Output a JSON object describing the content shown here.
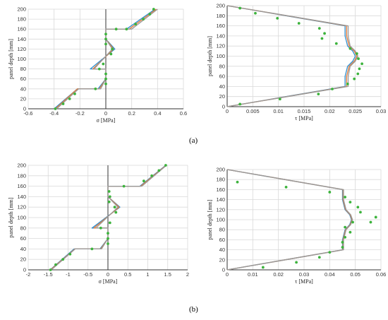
{
  "labels": {
    "a": "(a)",
    "b": "(b)"
  },
  "chart_data": [
    {
      "id": "a-sigma",
      "type": "line",
      "xlabel": "σ [MPa]",
      "ylabel": "panel depth [mm]",
      "xlim": [
        -0.6,
        0.6
      ],
      "ylim": [
        0,
        200
      ],
      "xticks": [
        -0.6,
        -0.4,
        -0.2,
        0,
        0.2,
        0.4,
        0.6
      ],
      "xticklabels": [
        "-0.6",
        "-0.4",
        "-0.2",
        "0",
        "0.2",
        "0.4",
        "0.6"
      ],
      "yticks": [
        0,
        20,
        40,
        60,
        80,
        100,
        120,
        140,
        160,
        180,
        200
      ],
      "grid": true,
      "series": [
        {
          "color": "#2f8fd0",
          "x": [
            -0.4,
            -0.22,
            -0.06,
            0,
            0,
            -0.12,
            0.07,
            0,
            0,
            0.16,
            0.38
          ],
          "y": [
            0,
            40,
            40,
            60,
            80,
            80,
            120,
            140,
            160,
            160,
            200
          ]
        },
        {
          "color": "#e07b3a",
          "x": [
            -0.39,
            -0.22,
            -0.05,
            0,
            0,
            -0.1,
            0.06,
            0,
            0,
            0.18,
            0.39
          ],
          "y": [
            0,
            40,
            40,
            60,
            80,
            80,
            120,
            140,
            160,
            160,
            200
          ]
        },
        {
          "color": "#999999",
          "x": [
            -0.38,
            -0.21,
            -0.04,
            0,
            0,
            -0.09,
            0.05,
            0,
            0,
            0.2,
            0.4
          ],
          "y": [
            0,
            40,
            40,
            60,
            80,
            80,
            120,
            140,
            160,
            160,
            200
          ]
        },
        {
          "type": "scatter",
          "color": "#3db33d",
          "x": [
            -0.39,
            -0.33,
            -0.28,
            -0.24,
            -0.08,
            0,
            0,
            0,
            -0.05,
            -0.02,
            0.04,
            0.05,
            0,
            0,
            0,
            0.08,
            0.16,
            0.23,
            0.29,
            0.34,
            0.37
          ],
          "y": [
            0,
            10,
            20,
            30,
            40,
            50,
            60,
            70,
            80,
            90,
            110,
            120,
            130,
            140,
            150,
            160,
            160,
            170,
            180,
            190,
            200
          ]
        }
      ]
    },
    {
      "id": "a-tau",
      "type": "line",
      "xlabel": "τ [MPa]",
      "ylabel": "panel depth [mm]",
      "xlim": [
        0,
        0.03
      ],
      "ylim": [
        0,
        200
      ],
      "xticks": [
        0,
        0.005,
        0.01,
        0.015,
        0.02,
        0.025,
        0.03
      ],
      "xticklabels": [
        "0",
        "0.005",
        "0.01",
        "0.015",
        "0.02",
        "0.025",
        "0.03"
      ],
      "yticks": [
        0,
        20,
        40,
        60,
        80,
        100,
        120,
        140,
        160,
        180,
        200
      ],
      "grid": true,
      "series": [
        {
          "color": "#2f8fd0",
          "x": [
            0,
            0.0115,
            0.023,
            0.023,
            0.0235,
            0.0245,
            0.025,
            0.0245,
            0.0235,
            0.023,
            0.023,
            0.0115,
            0
          ],
          "y": [
            0,
            20,
            40,
            60,
            80,
            90,
            100,
            110,
            120,
            140,
            160,
            180,
            200
          ]
        },
        {
          "color": "#e07b3a",
          "x": [
            0,
            0.0117,
            0.0233,
            0.0233,
            0.0238,
            0.0248,
            0.0253,
            0.0248,
            0.0238,
            0.0233,
            0.0233,
            0.0117,
            0
          ],
          "y": [
            0,
            20,
            40,
            60,
            80,
            90,
            100,
            110,
            120,
            140,
            160,
            180,
            200
          ]
        },
        {
          "color": "#999999",
          "x": [
            0,
            0.0118,
            0.0236,
            0.0236,
            0.024,
            0.025,
            0.0255,
            0.025,
            0.024,
            0.0236,
            0.0236,
            0.0118,
            0
          ],
          "y": [
            0,
            20,
            40,
            60,
            80,
            90,
            100,
            110,
            120,
            140,
            160,
            180,
            200
          ]
        },
        {
          "type": "scatter",
          "color": "#3db33d",
          "x": [
            0.0025,
            0.0103,
            0.0178,
            0.0205,
            0.0235,
            0.0248,
            0.0255,
            0.0258,
            0.0263,
            0.0256,
            0.0253,
            0.024,
            0.0213,
            0.0185,
            0.019,
            0.018,
            0.014,
            0.0098,
            0.0055,
            0.0025
          ],
          "y": [
            5,
            15,
            25,
            35,
            45,
            55,
            65,
            75,
            85,
            95,
            105,
            115,
            125,
            135,
            145,
            155,
            165,
            175,
            185,
            195
          ]
        }
      ]
    },
    {
      "id": "b-sigma",
      "type": "line",
      "xlabel": "σ [MPa]",
      "ylabel": "panel depth [mm]",
      "xlim": [
        -2,
        2
      ],
      "ylim": [
        0,
        200
      ],
      "xticks": [
        -2,
        -1.5,
        -1,
        -0.5,
        0,
        0.5,
        1,
        1.5,
        2
      ],
      "xticklabels": [
        "-2",
        "-1.5",
        "-1",
        "-0.5",
        "0",
        "0.5",
        "1",
        "1.5",
        "2"
      ],
      "yticks": [
        0,
        20,
        40,
        60,
        80,
        100,
        120,
        140,
        160,
        180,
        200
      ],
      "grid": true,
      "series": [
        {
          "color": "#2f8fd0",
          "x": [
            -1.45,
            -0.85,
            -0.2,
            0,
            0,
            -0.4,
            0.3,
            0,
            0,
            0.8,
            1.45
          ],
          "y": [
            0,
            40,
            40,
            60,
            80,
            80,
            120,
            140,
            160,
            160,
            200
          ]
        },
        {
          "color": "#e07b3a",
          "x": [
            -1.44,
            -0.83,
            -0.18,
            0,
            0,
            -0.35,
            0.28,
            0,
            0,
            0.82,
            1.46
          ],
          "y": [
            0,
            40,
            40,
            60,
            80,
            80,
            120,
            140,
            160,
            160,
            200
          ]
        },
        {
          "color": "#999999",
          "x": [
            -1.42,
            -0.82,
            -0.16,
            0,
            0,
            -0.3,
            0.25,
            0,
            0,
            0.85,
            1.47
          ],
          "y": [
            0,
            40,
            40,
            60,
            80,
            80,
            120,
            140,
            160,
            160,
            200
          ]
        },
        {
          "type": "scatter",
          "color": "#3db33d",
          "x": [
            -1.44,
            -1.31,
            -1.13,
            -0.95,
            -0.4,
            0,
            0,
            0,
            -0.18,
            0.05,
            0.2,
            0.17,
            0.03,
            0.05,
            0.03,
            0.4,
            0.9,
            1.1,
            1.28,
            1.45
          ],
          "y": [
            0,
            10,
            20,
            30,
            40,
            50,
            60,
            70,
            80,
            90,
            110,
            120,
            130,
            140,
            150,
            160,
            170,
            180,
            190,
            200
          ]
        }
      ]
    },
    {
      "id": "b-tau",
      "type": "line",
      "xlabel": "τ [MPa]",
      "ylabel": "panel depth [mm]",
      "xlim": [
        0,
        0.06
      ],
      "ylim": [
        0,
        200
      ],
      "xticks": [
        0,
        0.01,
        0.02,
        0.03,
        0.04,
        0.05,
        0.06
      ],
      "xticklabels": [
        "0",
        "0.01",
        "0.02",
        "0.03",
        "0.04",
        "0.05",
        "0.06"
      ],
      "yticks": [
        0,
        20,
        40,
        60,
        80,
        100,
        120,
        140,
        160,
        180,
        200
      ],
      "grid": true,
      "series": [
        {
          "color": "#2f8fd0",
          "x": [
            0,
            0.0225,
            0.045,
            0.045,
            0.046,
            0.0478,
            0.0485,
            0.0478,
            0.046,
            0.045,
            0.045,
            0.0225,
            0
          ],
          "y": [
            0,
            20,
            40,
            60,
            80,
            90,
            100,
            110,
            120,
            140,
            160,
            180,
            200
          ]
        },
        {
          "color": "#e07b3a",
          "x": [
            0,
            0.0226,
            0.0452,
            0.0452,
            0.0462,
            0.048,
            0.0487,
            0.048,
            0.0462,
            0.0452,
            0.0452,
            0.0226,
            0
          ],
          "y": [
            0,
            20,
            40,
            60,
            80,
            90,
            100,
            110,
            120,
            140,
            160,
            180,
            200
          ]
        },
        {
          "color": "#999999",
          "x": [
            0,
            0.0227,
            0.0454,
            0.0454,
            0.0464,
            0.0482,
            0.0489,
            0.0482,
            0.0464,
            0.0454,
            0.0454,
            0.0227,
            0
          ],
          "y": [
            0,
            20,
            40,
            60,
            80,
            90,
            100,
            110,
            120,
            140,
            160,
            180,
            200
          ]
        },
        {
          "type": "scatter",
          "color": "#3db33d",
          "x": [
            0.014,
            0.027,
            0.036,
            0.04,
            0.045,
            0.045,
            0.046,
            0.048,
            0.046,
            0.049,
            0.056,
            0.058,
            0.052,
            0.051,
            0.048,
            0.046,
            0.04,
            0.023,
            0.004
          ],
          "y": [
            5,
            15,
            25,
            35,
            45,
            55,
            65,
            75,
            85,
            95,
            95,
            105,
            115,
            125,
            135,
            145,
            155,
            165,
            175
          ]
        }
      ]
    }
  ]
}
